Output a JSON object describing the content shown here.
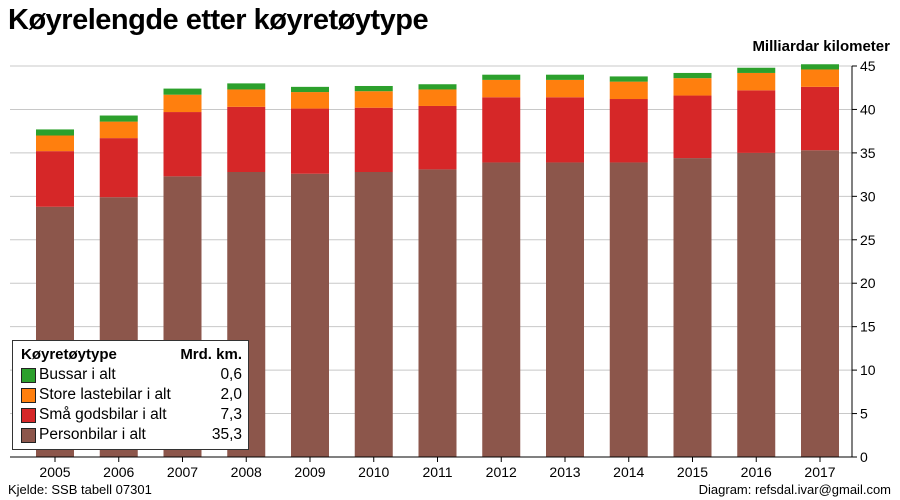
{
  "header": {
    "title": "Køyrelengde etter køyretøytype",
    "y_unit": "Milliardar kilometer"
  },
  "footer": {
    "source": "Kjelde: SSB tabell 07301",
    "credit": "Diagram: refsdal.ivar@gmail.com"
  },
  "legend": {
    "col_type": "Køyretøytype",
    "col_value": "Mrd. km.",
    "items": [
      {
        "label": "Bussar i alt",
        "value": "0,6",
        "color": "#2ca02c"
      },
      {
        "label": "Store lastebilar i alt",
        "value": "2,0",
        "color": "#ff7f0e"
      },
      {
        "label": "Små godsbilar i alt",
        "value": "7,3",
        "color": "#d62728"
      },
      {
        "label": "Personbilar i alt",
        "value": "35,3",
        "color": "#8c564b"
      }
    ]
  },
  "chart_data": {
    "type": "bar",
    "stacked": true,
    "categories": [
      "2005",
      "2006",
      "2007",
      "2008",
      "2009",
      "2010",
      "2011",
      "2012",
      "2013",
      "2014",
      "2015",
      "2016",
      "2017"
    ],
    "series": [
      {
        "name": "Personbilar i alt",
        "color": "#8c564b",
        "values": [
          28.8,
          29.9,
          32.3,
          32.8,
          32.6,
          32.8,
          33.1,
          33.9,
          33.9,
          33.9,
          34.4,
          35.0,
          35.3
        ]
      },
      {
        "name": "Små godsbilar i alt",
        "color": "#d62728",
        "values": [
          6.4,
          6.8,
          7.4,
          7.5,
          7.5,
          7.4,
          7.3,
          7.5,
          7.5,
          7.3,
          7.2,
          7.2,
          7.3
        ]
      },
      {
        "name": "Store lastebilar i alt",
        "color": "#ff7f0e",
        "values": [
          1.8,
          1.9,
          2.0,
          2.0,
          1.9,
          1.9,
          1.9,
          2.0,
          2.0,
          2.0,
          2.0,
          2.0,
          2.0
        ]
      },
      {
        "name": "Bussar i alt",
        "color": "#2ca02c",
        "values": [
          0.7,
          0.7,
          0.7,
          0.7,
          0.6,
          0.6,
          0.6,
          0.6,
          0.6,
          0.6,
          0.6,
          0.6,
          0.6
        ]
      }
    ],
    "ylim": [
      0,
      45
    ],
    "yticks": [
      0,
      5,
      10,
      15,
      20,
      25,
      30,
      35,
      40,
      45
    ],
    "y_axis_side": "right",
    "grid": true,
    "legend_position": "bottom-left"
  }
}
